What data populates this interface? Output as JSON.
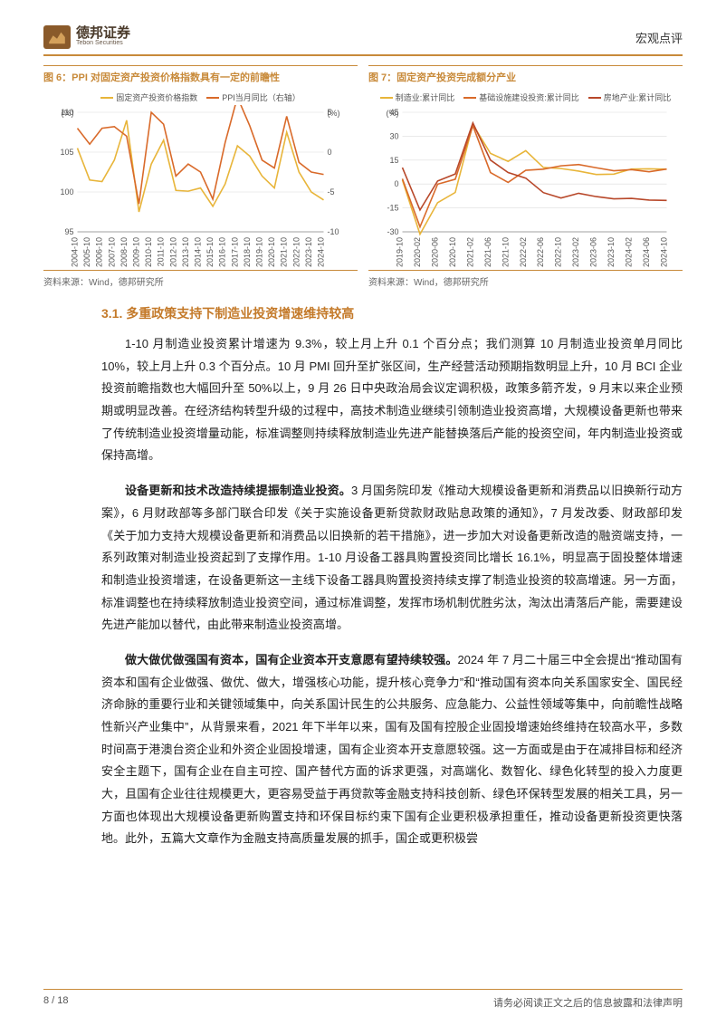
{
  "header": {
    "logo_cn": "德邦证券",
    "logo_en": "Tebon Securities",
    "doc_type": "宏观点评"
  },
  "chart6": {
    "title": "图 6：PPI 对固定资产投资价格指数具有一定的前瞻性",
    "source": "资料来源：Wind，德邦研究所",
    "type": "line",
    "background_color": "#ffffff",
    "grid_color": "#dcdcdc",
    "axis_color": "#888888",
    "font_size": 9,
    "left_axis": {
      "label": "(%)",
      "min": 95,
      "max": 110,
      "ticks": [
        95,
        100,
        105,
        110
      ]
    },
    "right_axis": {
      "label": "(%)",
      "min": -10,
      "max": 5,
      "ticks": [
        -10,
        -5,
        0,
        5
      ]
    },
    "x_labels": [
      "2004-10",
      "2005-10",
      "2006-10",
      "2007-10",
      "2008-10",
      "2009-10",
      "2010-10",
      "2011-10",
      "2012-10",
      "2013-10",
      "2014-10",
      "2015-10",
      "2016-10",
      "2017-10",
      "2018-10",
      "2019-10",
      "2020-10",
      "2021-10",
      "2022-10",
      "2023-10",
      "2024-10"
    ],
    "series": [
      {
        "name": "固定资产投资价格指数",
        "axis": "left",
        "color": "#e8b53a",
        "width": 1.6,
        "values": [
          105.5,
          101.5,
          101.3,
          104.0,
          109.0,
          97.5,
          103.5,
          106.5,
          100.2,
          100.1,
          100.5,
          98.2,
          101.0,
          105.8,
          104.5,
          102.0,
          100.5,
          107.5,
          102.5,
          100.0,
          99.0
        ]
      },
      {
        "name": "PPI当月同比（右轴）",
        "axis": "right",
        "color": "#d96a2a",
        "width": 1.6,
        "values": [
          3.0,
          1.0,
          3.0,
          3.2,
          2.0,
          -6.5,
          5.0,
          3.5,
          -3.0,
          -1.5,
          -2.5,
          -5.9,
          1.2,
          6.9,
          3.3,
          -1.0,
          -2.0,
          4.5,
          -1.3,
          -2.5,
          -2.8
        ]
      }
    ]
  },
  "chart7": {
    "title": "图 7：固定资产投资完成额分产业",
    "source": "资料来源：Wind，德邦研究所",
    "type": "line",
    "background_color": "#ffffff",
    "grid_color": "#dcdcdc",
    "axis_color": "#888888",
    "font_size": 9,
    "left_axis": {
      "label": "(%)",
      "min": -30,
      "max": 45,
      "ticks": [
        -30,
        -15,
        0,
        15,
        30,
        45
      ]
    },
    "x_labels": [
      "2019-10",
      "2020-02",
      "2020-06",
      "2020-10",
      "2021-02",
      "2021-06",
      "2021-10",
      "2022-02",
      "2022-06",
      "2022-10",
      "2023-02",
      "2023-06",
      "2023-10",
      "2024-02",
      "2024-06",
      "2024-10"
    ],
    "series": [
      {
        "name": "制造业:累计同比",
        "color": "#e8b53a",
        "width": 1.6,
        "values": [
          2.5,
          -31.5,
          -11.7,
          -5.3,
          37.3,
          19.2,
          14.2,
          20.9,
          10.4,
          9.7,
          8.1,
          6.0,
          6.2,
          9.4,
          9.5,
          9.3
        ]
      },
      {
        "name": "基础设施建设投资:累计同比",
        "color": "#d96a2a",
        "width": 1.6,
        "values": [
          3.3,
          -26.9,
          -0.1,
          3.0,
          36.6,
          7.2,
          1.0,
          8.6,
          9.3,
          11.4,
          12.2,
          10.2,
          8.3,
          9.0,
          7.7,
          9.4
        ]
      },
      {
        "name": "房地产业:累计同比",
        "color": "#b8482a",
        "width": 1.6,
        "values": [
          10.3,
          -16.3,
          1.9,
          6.3,
          38.3,
          15.0,
          7.2,
          3.7,
          -5.4,
          -8.8,
          -5.8,
          -7.9,
          -9.3,
          -9.0,
          -10.1,
          -10.3
        ]
      }
    ]
  },
  "section": {
    "heading": "3.1. 多重政策支持下制造业投资增速维持较高",
    "p1": "1-10 月制造业投资累计增速为 9.3%，较上月上升 0.1 个百分点；我们测算 10 月制造业投资单月同比 10%，较上月上升 0.3 个百分点。10 月 PMI 回升至扩张区间，生产经营活动预期指数明显上升，10 月 BCI 企业投资前瞻指数也大幅回升至 50%以上，9 月 26 日中央政治局会议定调积极，政策多箭齐发，9 月末以来企业预期或明显改善。在经济结构转型升级的过程中，高技术制造业继续引领制造业投资高增，大规模设备更新也带来了传统制造业投资增量动能，标准调整则持续释放制造业先进产能替换落后产能的投资空间，年内制造业投资或保持高增。",
    "p2_bold": "设备更新和技术改造持续提振制造业投资。",
    "p2_rest": "3 月国务院印发《推动大规模设备更新和消费品以旧换新行动方案》，6 月财政部等多部门联合印发《关于实施设备更新贷款财政贴息政策的通知》，7 月发改委、财政部印发《关于加力支持大规模设备更新和消费品以旧换新的若干措施》，进一步加大对设备更新改造的融资端支持，一系列政策对制造业投资起到了支撑作用。1-10 月设备工器具购置投资同比增长 16.1%，明显高于固投整体增速和制造业投资增速，在设备更新这一主线下设备工器具购置投资持续支撑了制造业投资的较高增速。另一方面，标准调整也在持续释放制造业投资空间，通过标准调整，发挥市场机制优胜劣汰，淘汰出清落后产能，需要建设先进产能加以替代，由此带来制造业投资高增。",
    "p3_bold": "做大做优做强国有资本，国有企业资本开支意愿有望持续较强。",
    "p3_rest": "2024 年 7 月二十届三中全会提出“推动国有资本和国有企业做强、做优、做大，增强核心功能，提升核心竞争力”和“推动国有资本向关系国家安全、国民经济命脉的重要行业和关键领域集中，向关系国计民生的公共服务、应急能力、公益性领域等集中，向前瞻性战略性新兴产业集中”，从背景来看，2021 年下半年以来，国有及国有控股企业固投增速始终维持在较高水平，多数时间高于港澳台资企业和外资企业固投增速，国有企业资本开支意愿较强。这一方面或是由于在减排目标和经济安全主题下，国有企业在自主可控、国产替代方面的诉求更强，对高端化、数智化、绿色化转型的投入力度更大，且国有企业往往规模更大，更容易受益于再贷款等金融支持科技创新、绿色环保转型发展的相关工具，另一方面也体现出大规模设备更新购置支持和环保目标约束下国有企业更积极承担重任，推动设备更新投资更快落地。此外，五篇大文章作为金融支持高质量发展的抓手，国企或更积极尝"
  },
  "footer": {
    "page": "8 / 18",
    "disclaimer": "请务必阅读正文之后的信息披露和法律声明"
  }
}
